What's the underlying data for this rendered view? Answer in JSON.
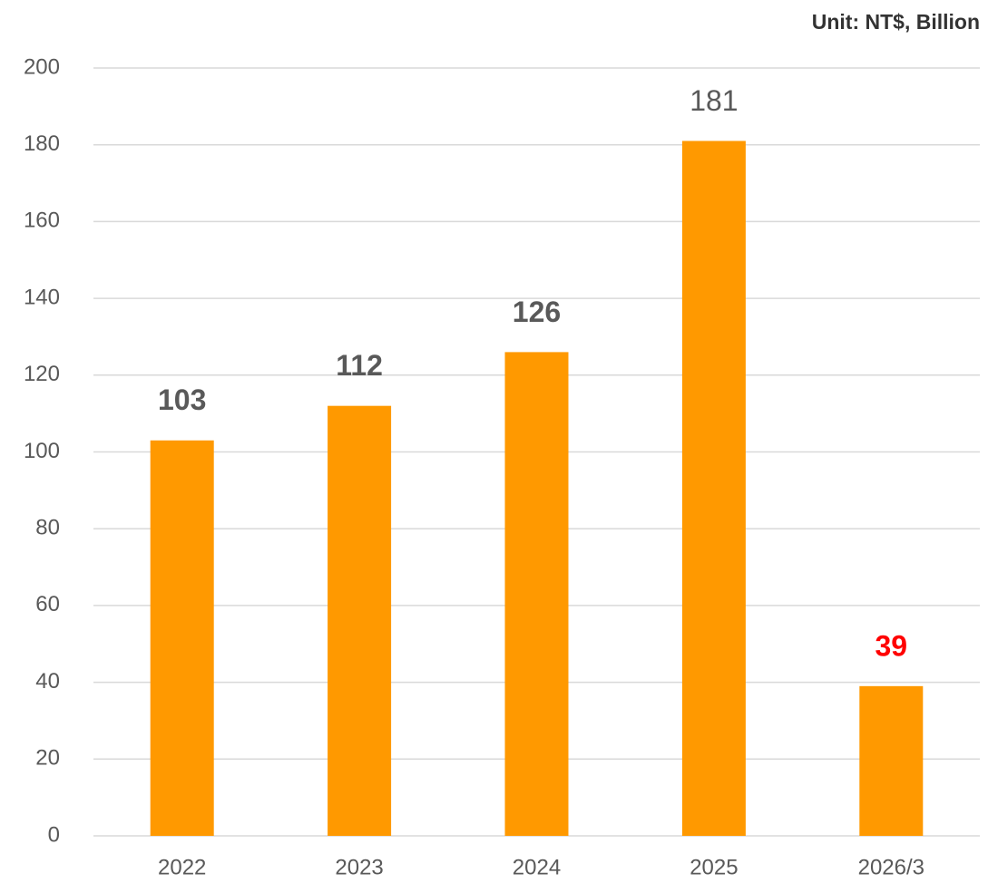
{
  "chart_data": {
    "type": "bar",
    "annotation": "Unit: NT$, Billion",
    "categories": [
      "2022",
      "2023",
      "2024",
      "2025",
      "2026/3"
    ],
    "values": [
      103,
      112,
      126,
      181,
      39
    ],
    "color": "#ff9900",
    "value_label_colors": [
      "#595959",
      "#595959",
      "#595959",
      "#595959",
      "#ff0000"
    ],
    "value_label_bold": [
      true,
      true,
      true,
      false,
      true
    ],
    "ylim": [
      0,
      200
    ],
    "yticks": [
      0,
      20,
      40,
      60,
      80,
      100,
      120,
      140,
      160,
      180,
      200
    ],
    "grid": true
  }
}
